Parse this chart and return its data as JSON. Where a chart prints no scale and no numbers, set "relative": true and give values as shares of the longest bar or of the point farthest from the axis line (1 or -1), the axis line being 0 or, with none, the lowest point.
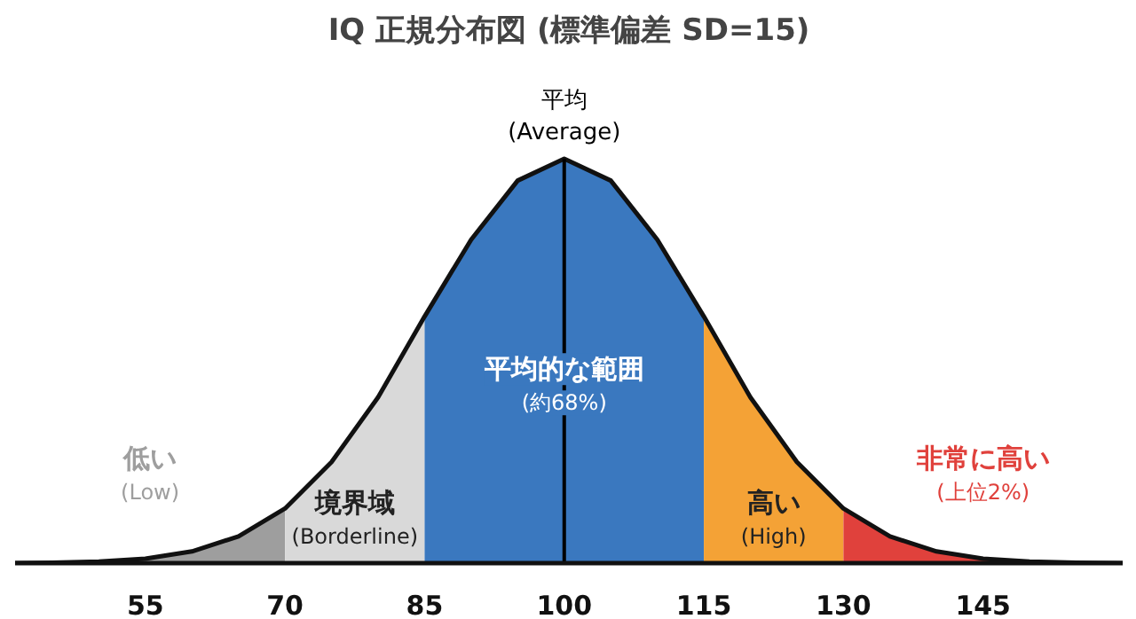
{
  "chart_data": {
    "type": "area",
    "title": "IQ 正規分布図 (標準偏差 SD=15)",
    "relative": true,
    "xlim": [
      41,
      160
    ],
    "xticks": [
      55,
      70,
      85,
      100,
      115,
      130,
      145
    ],
    "series": [
      {
        "name": "低い\n(Low)",
        "color": "#9e9e9e",
        "x": [
          41,
          45,
          50,
          55,
          60,
          65,
          70
        ],
        "values": [
          0.0,
          0.001,
          0.004,
          0.011,
          0.029,
          0.066,
          0.135
        ]
      },
      {
        "name": "境界域\n(Borderline)",
        "color": "#d9d9d9",
        "x": [
          70,
          75,
          80,
          85
        ],
        "values": [
          0.135,
          0.25,
          0.41,
          0.61
        ]
      },
      {
        "name": "平均的な範囲\n(約68%)",
        "color": "#3a78bf",
        "x": [
          85,
          90,
          95,
          100,
          105,
          110,
          115
        ],
        "values": [
          0.61,
          0.8,
          0.946,
          1.0,
          0.946,
          0.8,
          0.61
        ]
      },
      {
        "name": "高い\n(High)",
        "color": "#f4a236",
        "x": [
          115,
          120,
          125,
          130
        ],
        "values": [
          0.61,
          0.41,
          0.25,
          0.135
        ]
      },
      {
        "name": "非常に高い\n(上位2%)",
        "color": "#e0413c",
        "x": [
          130,
          135,
          140,
          145,
          150,
          155,
          160
        ],
        "values": [
          0.135,
          0.066,
          0.029,
          0.011,
          0.004,
          0.001,
          0.0
        ]
      },
      {
        "type": "line",
        "color": "#111111",
        "x": [
          41,
          45,
          50,
          55,
          60,
          65,
          70,
          75,
          80,
          85,
          90,
          95,
          100,
          105,
          110,
          115,
          120,
          125,
          130,
          135,
          140,
          145,
          150,
          155,
          160
        ],
        "values": [
          0.0,
          0.001,
          0.004,
          0.011,
          0.029,
          0.066,
          0.135,
          0.25,
          0.41,
          0.61,
          0.8,
          0.946,
          1.0,
          0.946,
          0.8,
          0.61,
          0.41,
          0.25,
          0.135,
          0.066,
          0.029,
          0.011,
          0.004,
          0.001,
          0.0
        ]
      }
    ],
    "ref_lines": [
      {
        "axis": "x",
        "value": 100,
        "label": "平均\n(Average)",
        "color": "#000000"
      }
    ]
  }
}
